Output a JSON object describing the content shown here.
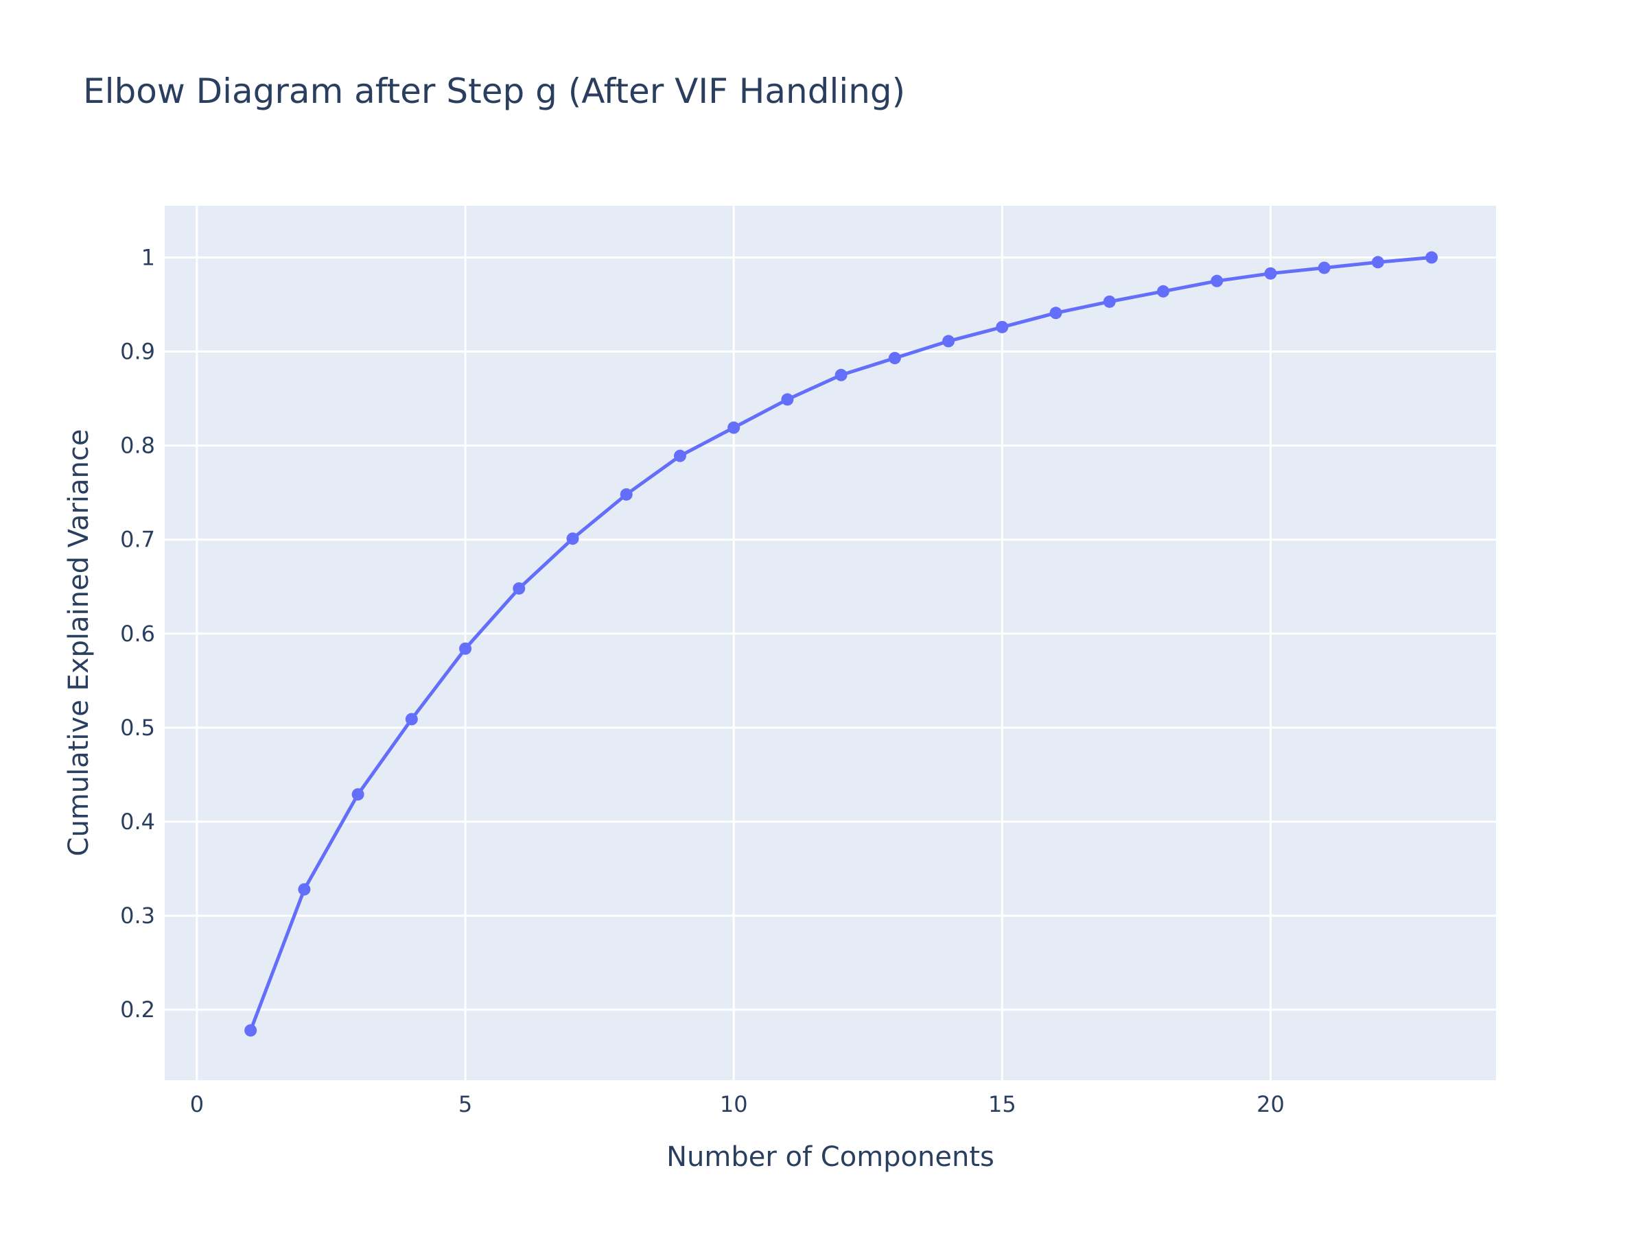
{
  "chart_data": {
    "type": "line",
    "title": "Elbow Diagram after Step g (After VIF Handling)",
    "xlabel": "Number of Components",
    "ylabel": "Cumulative Explained Variance",
    "xlim": [
      -0.6,
      24.2
    ],
    "ylim": [
      0.125,
      1.055
    ],
    "x_ticks": [
      0,
      5,
      10,
      15,
      20
    ],
    "y_ticks": [
      0.2,
      0.3,
      0.4,
      0.5,
      0.6,
      0.7,
      0.8,
      0.9,
      1
    ],
    "x_tick_labels": [
      "0",
      "5",
      "10",
      "15",
      "20"
    ],
    "y_tick_labels": [
      "0.2",
      "0.3",
      "0.4",
      "0.5",
      "0.6",
      "0.7",
      "0.8",
      "0.9",
      "1"
    ],
    "grid": true,
    "legend": "none",
    "colors": {
      "line": "#636efa",
      "plot_bg": "#e5ecf6",
      "grid": "#ffffff",
      "text": "#2a3f5f"
    },
    "series": [
      {
        "x": [
          1,
          2,
          3,
          4,
          5,
          6,
          7,
          8,
          9,
          10,
          11,
          12,
          13,
          14,
          15,
          16,
          17,
          18,
          19,
          20,
          21,
          22,
          23
        ],
        "values": [
          0.178,
          0.328,
          0.429,
          0.509,
          0.584,
          0.648,
          0.701,
          0.748,
          0.789,
          0.819,
          0.849,
          0.875,
          0.893,
          0.911,
          0.926,
          0.941,
          0.953,
          0.964,
          0.975,
          0.983,
          0.989,
          0.995,
          1.0
        ]
      }
    ]
  }
}
